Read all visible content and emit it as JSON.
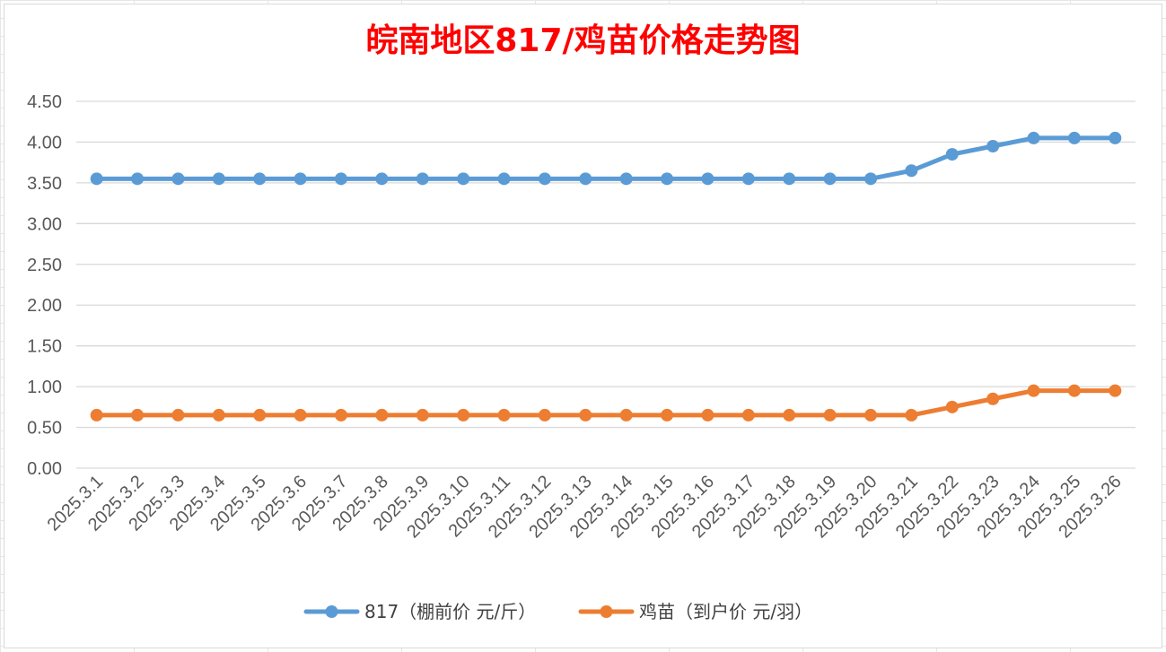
{
  "chart_data": {
    "type": "line",
    "title": "皖南地区817/鸡苗价格走势图",
    "xlabel": "",
    "ylabel": "",
    "ylim": [
      0,
      4.5
    ],
    "y_ticks": [
      "0.00",
      "0.50",
      "1.00",
      "1.50",
      "2.00",
      "2.50",
      "3.00",
      "3.50",
      "4.00",
      "4.50"
    ],
    "grid": true,
    "legend_position": "bottom",
    "categories": [
      "2025.3.1",
      "2025.3.2",
      "2025.3.3",
      "2025.3.4",
      "2025.3.5",
      "2025.3.6",
      "2025.3.7",
      "2025.3.8",
      "2025.3.9",
      "2025.3.10",
      "2025.3.11",
      "2025.3.12",
      "2025.3.13",
      "2025.3.14",
      "2025.3.15",
      "2025.3.16",
      "2025.3.17",
      "2025.3.18",
      "2025.3.19",
      "2025.3.20",
      "2025.3.21",
      "2025.3.22",
      "2025.3.23",
      "2025.3.24",
      "2025.3.25",
      "2025.3.26"
    ],
    "series": [
      {
        "name": "817（棚前价 元/斤）",
        "color": "#5b9bd5",
        "values": [
          3.55,
          3.55,
          3.55,
          3.55,
          3.55,
          3.55,
          3.55,
          3.55,
          3.55,
          3.55,
          3.55,
          3.55,
          3.55,
          3.55,
          3.55,
          3.55,
          3.55,
          3.55,
          3.55,
          3.55,
          3.65,
          3.85,
          3.95,
          4.05,
          4.05,
          4.05
        ]
      },
      {
        "name": "鸡苗（到户价 元/羽）",
        "color": "#ed7d31",
        "values": [
          0.65,
          0.65,
          0.65,
          0.65,
          0.65,
          0.65,
          0.65,
          0.65,
          0.65,
          0.65,
          0.65,
          0.65,
          0.65,
          0.65,
          0.65,
          0.65,
          0.65,
          0.65,
          0.65,
          0.65,
          0.65,
          0.75,
          0.85,
          0.95,
          0.95,
          0.95
        ]
      }
    ]
  }
}
